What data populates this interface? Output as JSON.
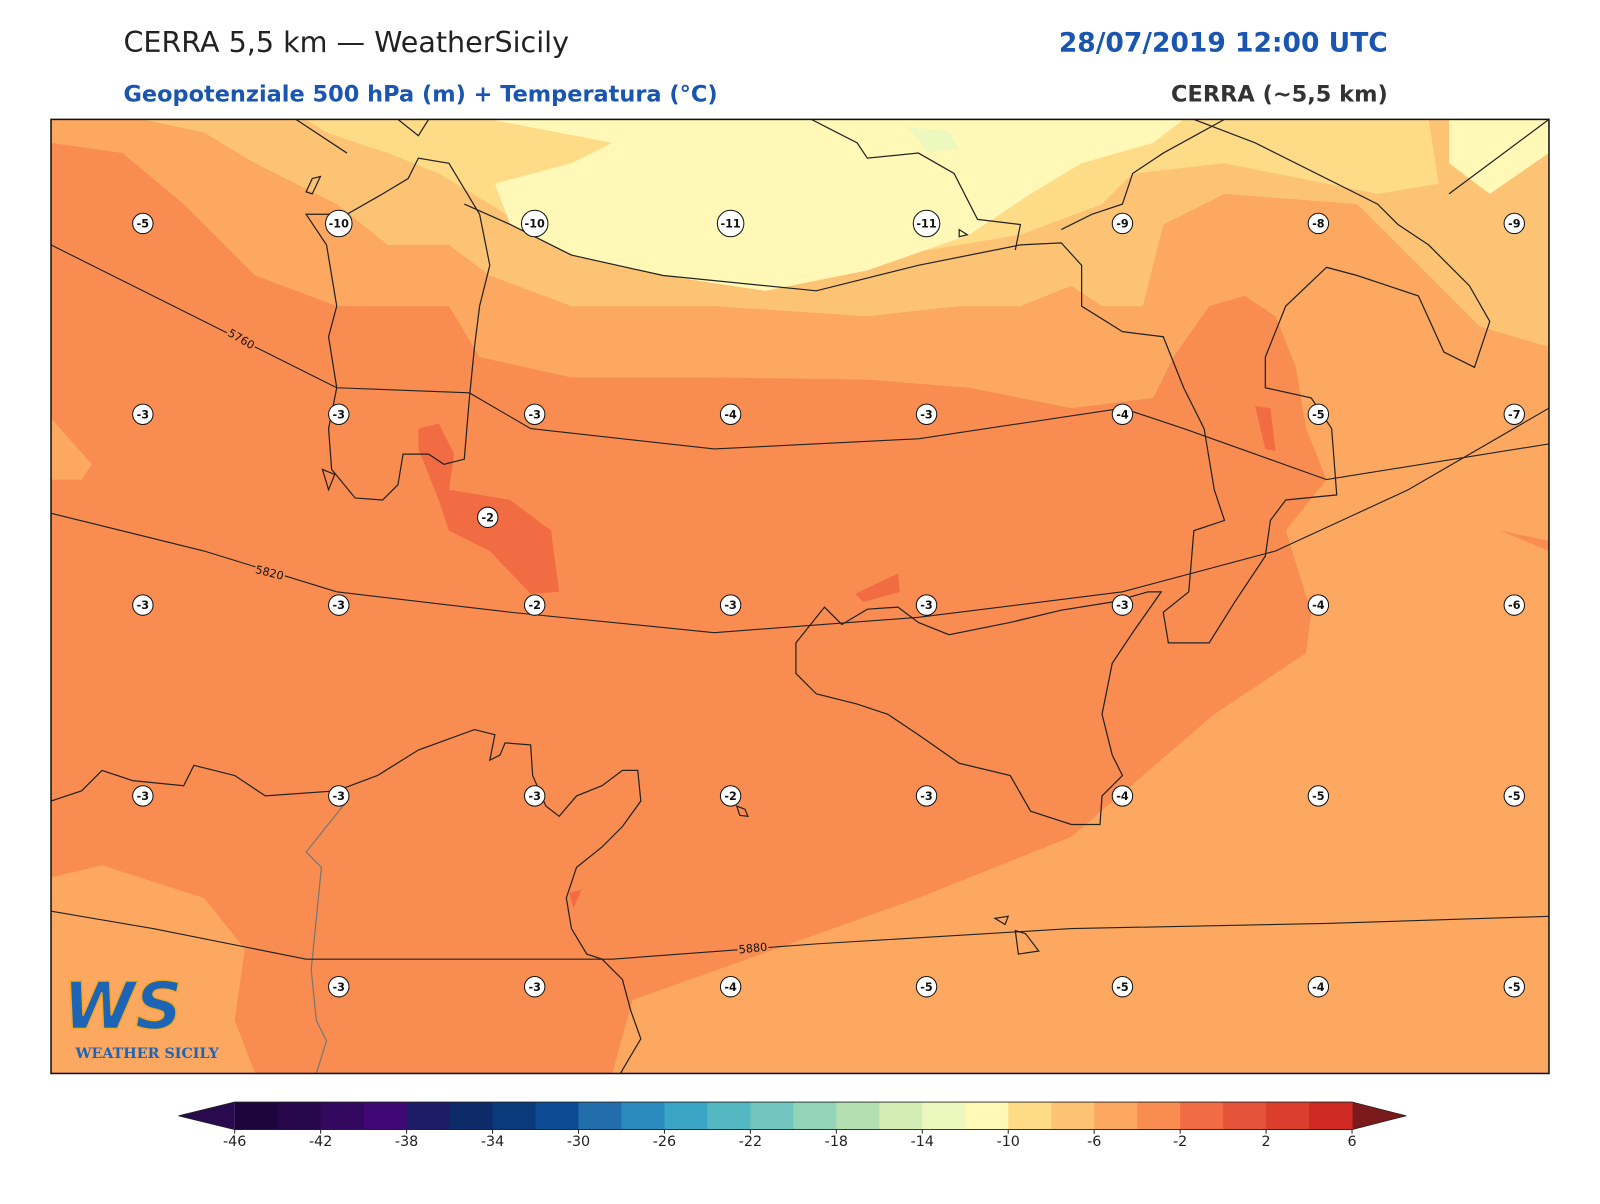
{
  "header": {
    "title": "CERRA 5,5 km — WeatherSicily",
    "date": "28/07/2019 12:00 UTC",
    "subtitle": "Geopotenziale 500 hPa (m) + Temperatura (°C)",
    "source": "CERRA (~5,5 km)"
  },
  "stations": {
    "rows": [
      [
        -5,
        -10,
        -10,
        -11,
        -11,
        -9,
        -8,
        -9
      ],
      [
        -3,
        -3,
        -3,
        -4,
        -3,
        -4,
        -5,
        -7
      ],
      [
        -3,
        -3,
        -2,
        -3,
        -3,
        -3,
        -4,
        -6
      ],
      [
        -3,
        -3,
        -3,
        -2,
        -3,
        -4,
        -5,
        -5
      ],
      [
        null,
        -3,
        -3,
        -4,
        -5,
        -5,
        -4,
        -5
      ]
    ],
    "extra": [
      -2
    ]
  },
  "contours": {
    "labels": [
      5760,
      5820,
      5880
    ]
  },
  "colorbar": {
    "lim": [
      -46,
      6
    ],
    "ticks": [
      -46,
      -42,
      -38,
      -34,
      -30,
      -26,
      -22,
      -18,
      -14,
      -10,
      -6,
      -2,
      2,
      6
    ],
    "colors": [
      "#1d053b",
      "#26074c",
      "#32095f",
      "#3f0874",
      "#1e1b66",
      "#0c2b68",
      "#0b3a7a",
      "#0b4c95",
      "#226ead",
      "#2c8bbe",
      "#3ba5c6",
      "#54b8c3",
      "#72c6bf",
      "#93d3b6",
      "#b4dfb1",
      "#d4edb5",
      "#edf8be",
      "#fff8b6",
      "#fedb87",
      "#fdc374",
      "#fca860",
      "#f88c51",
      "#f26c43",
      "#e5523a",
      "#dc3e2d",
      "#d02a25"
    ],
    "under_color": "#2a0a4e",
    "over_color": "#7a1a1a"
  },
  "logo": {
    "letters": "WS",
    "name": "WEATHER SICILY"
  }
}
